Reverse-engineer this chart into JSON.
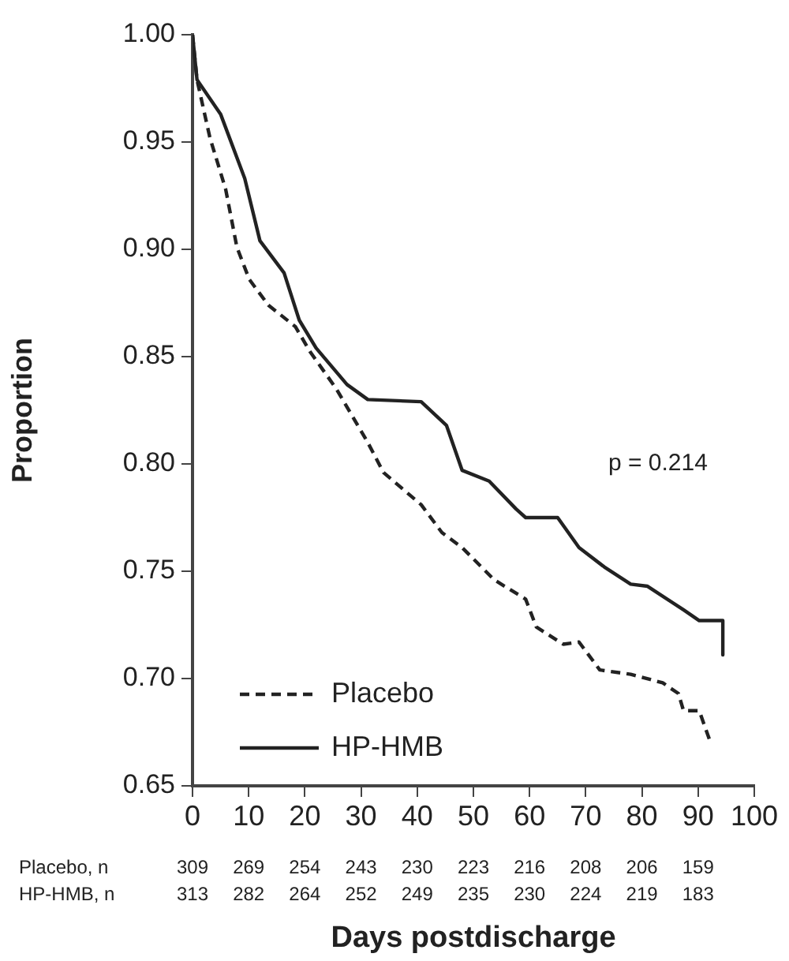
{
  "chart_data": {
    "type": "line",
    "xlabel": "Days postdischarge",
    "ylabel": "Proportion",
    "xlim": [
      0,
      100
    ],
    "xticks": [
      0,
      10,
      20,
      30,
      40,
      50,
      60,
      70,
      80,
      90,
      100
    ],
    "ylim": [
      0.65,
      1.0
    ],
    "yticks": [
      {
        "value": 0.65,
        "label": "0.65"
      },
      {
        "value": 0.7,
        "label": "0.70"
      },
      {
        "value": 0.75,
        "label": "0.75"
      },
      {
        "value": 0.8,
        "label": "0.80"
      },
      {
        "value": 0.85,
        "label": "0.85"
      },
      {
        "value": 0.9,
        "label": "0.90"
      },
      {
        "value": 0.95,
        "label": "0.95"
      },
      {
        "value": 1.0,
        "label": "1.00"
      }
    ],
    "grid": false,
    "legend": "bottom left",
    "marker": "none",
    "series": [
      {
        "name": "Placebo",
        "color": "#222222",
        "line_style": "dashed",
        "x": [
          0,
          0.8,
          3.1,
          5.9,
          7.9,
          10.1,
          13.5,
          18.3,
          21,
          25.6,
          31.2,
          34,
          40.7,
          44.4,
          48,
          53.7,
          59.3,
          61.2,
          66,
          68.8,
          72.5,
          78,
          83.7,
          86.5,
          87.4,
          90.2,
          92.1
        ],
        "values": [
          1.0,
          0.979,
          0.952,
          0.928,
          0.901,
          0.886,
          0.874,
          0.864,
          0.852,
          0.835,
          0.81,
          0.796,
          0.781,
          0.768,
          0.761,
          0.746,
          0.737,
          0.724,
          0.716,
          0.717,
          0.704,
          0.702,
          0.698,
          0.693,
          0.685,
          0.685,
          0.671
        ]
      },
      {
        "name": "HP-HMB",
        "color": "#222222",
        "line_style": "solid",
        "x": [
          0,
          0.8,
          5,
          9.3,
          12,
          16.3,
          19,
          22,
          27.5,
          31.2,
          40.7,
          45.2,
          48,
          52.8,
          57.6,
          59.3,
          65,
          68.8,
          73.3,
          78,
          81,
          87.4,
          90.2,
          94.4,
          94.4
        ],
        "values": [
          1.0,
          0.979,
          0.963,
          0.933,
          0.904,
          0.889,
          0.867,
          0.854,
          0.837,
          0.83,
          0.829,
          0.818,
          0.797,
          0.792,
          0.779,
          0.775,
          0.775,
          0.761,
          0.752,
          0.744,
          0.743,
          0.732,
          0.727,
          0.727,
          0.711
        ]
      }
    ],
    "annotations": [
      "p = 0.214",
      "Placebo, n 309 269 254 243 230 223 216 208 206 159",
      "HP-HMB, n 313 282 264 252 249 235 230 224 219 183"
    ]
  }
}
